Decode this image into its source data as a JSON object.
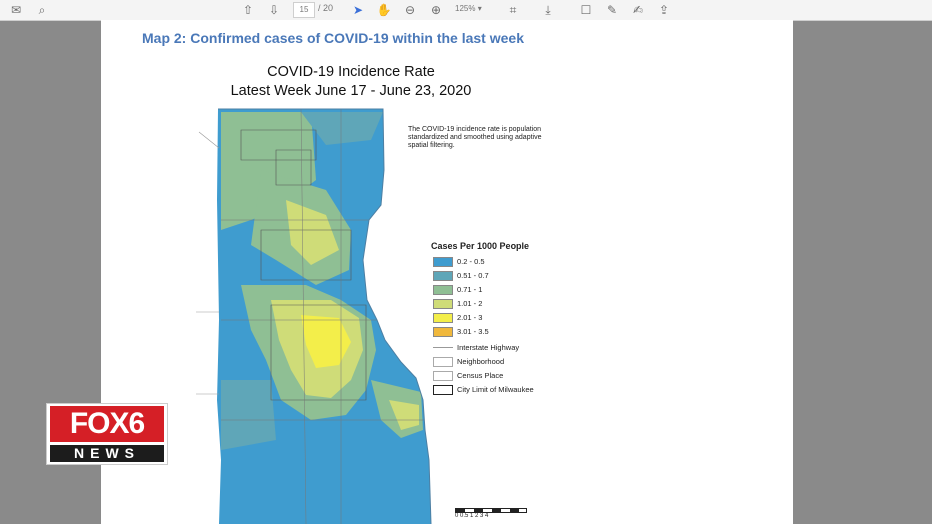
{
  "toolbar": {
    "icons": [
      "mail-icon",
      "search-icon",
      "up-arrow-icon",
      "down-arrow-icon",
      "pointer-icon",
      "hand-icon",
      "zoom-out-icon",
      "zoom-in-icon",
      "crop-icon",
      "download-icon",
      "comment-icon",
      "pen-icon",
      "sign-icon",
      "share-icon"
    ],
    "page_current": "15",
    "page_total": "/ 20",
    "zoom": "125%"
  },
  "document": {
    "heading": "Map 2: Confirmed cases of COVID-19 within the last week",
    "map_title_line1": "COVID-19 Incidence Rate",
    "map_title_line2": "Latest Week June 17 - June 23, 2020",
    "note": "The COVID-19 incidence rate is population standardized and smoothed using adaptive spatial filtering.",
    "legend_title": "Cases Per 1000 People",
    "legend_items": [
      {
        "label": "0.2 - 0.5",
        "color": "#3f9ccf"
      },
      {
        "label": "0.51 - 0.7",
        "color": "#5fa6b8"
      },
      {
        "label": "0.71 - 1",
        "color": "#8fbf94"
      },
      {
        "label": "1.01 - 2",
        "color": "#cfdc78"
      },
      {
        "label": "2.01 - 3",
        "color": "#f3ee4a"
      },
      {
        "label": "3.01 - 3.5",
        "color": "#f0b83c"
      }
    ],
    "legend_lines": [
      {
        "label": "Interstate Highway"
      },
      {
        "label": "Neighborhood"
      },
      {
        "label": "Census Place"
      },
      {
        "label": "City Limit of Milwaukee"
      }
    ],
    "scale_labels": "0 0.5 1   2   3   4"
  },
  "logo": {
    "top": "FOX6",
    "bottom": "NEWS"
  }
}
